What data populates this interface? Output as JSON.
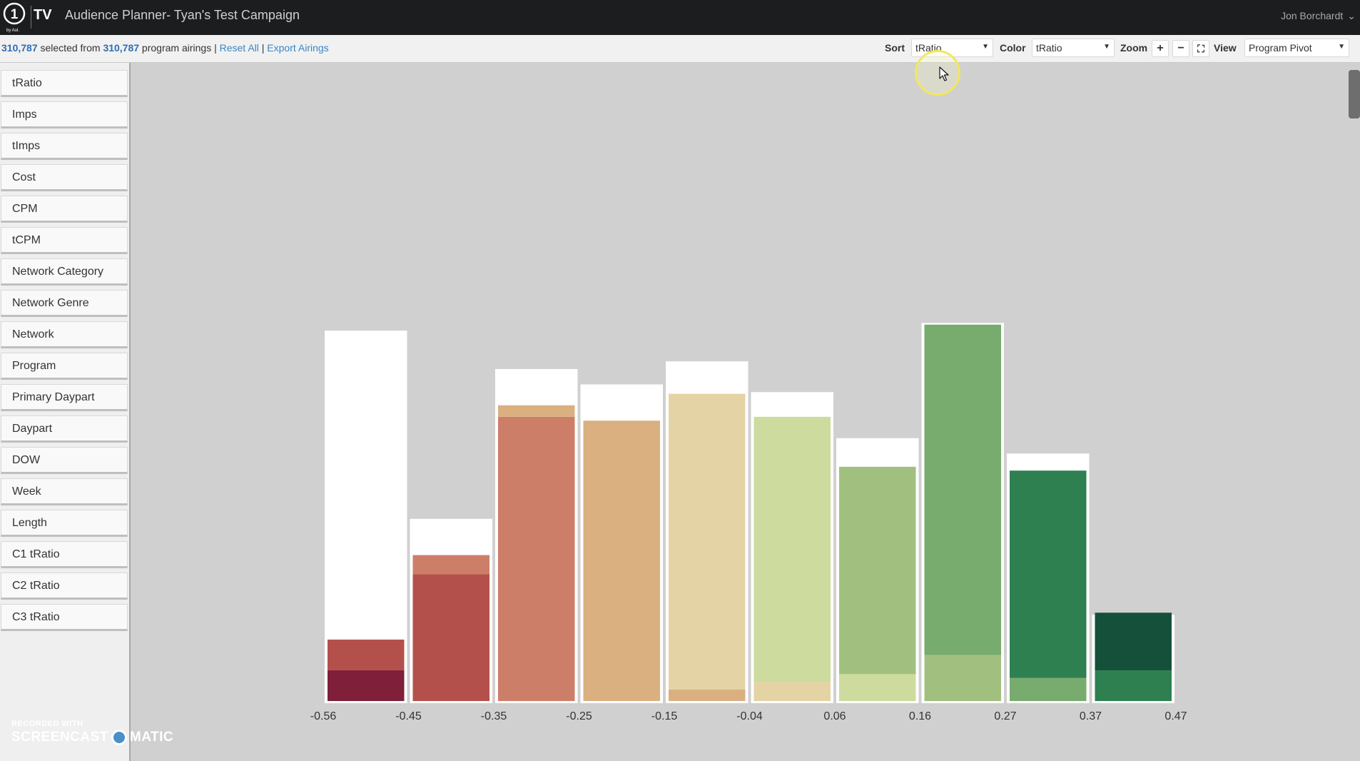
{
  "app": {
    "logo_tv": "TV",
    "title": "Audience Planner- Tyan's Test Campaign",
    "user": "Jon Borchardt"
  },
  "selection": {
    "selected": "310,787",
    "text_mid": " selected from ",
    "total": "310,787",
    "text_after": " program airings | ",
    "reset": "Reset All",
    "sep": " | ",
    "export": "Export Airings"
  },
  "controls": {
    "sort_label": "Sort",
    "sort_value": "tRatio",
    "color_label": "Color",
    "color_value": "tRatio",
    "zoom_label": "Zoom",
    "zoom_in": "+",
    "zoom_out": "−",
    "fit": "⛶",
    "view_label": "View",
    "view_value": "Program Pivot"
  },
  "sidebar": {
    "items": [
      "tRatio",
      "Imps",
      "tImps",
      "Cost",
      "CPM",
      "tCPM",
      "Network Category",
      "Network Genre",
      "Network",
      "Program",
      "Primary Daypart",
      "Daypart",
      "DOW",
      "Week",
      "Length",
      "C1 tRatio",
      "C2 tRatio",
      "C3 tRatio"
    ]
  },
  "chart_data": {
    "type": "bar",
    "x_ticks": [
      "-0.56",
      "-0.45",
      "-0.35",
      "-0.25",
      "-0.15",
      "-0.04",
      "0.06",
      "0.16",
      "0.27",
      "0.37",
      "0.47"
    ],
    "bins": [
      {
        "range": [
          "-0.56",
          "-0.45"
        ],
        "total": 97,
        "segments": [
          {
            "value": 8,
            "color": "#7f1f3a"
          },
          {
            "value": 8,
            "color": "#b4504b"
          }
        ]
      },
      {
        "range": [
          "-0.45",
          "-0.35"
        ],
        "total": 48,
        "segments": [
          {
            "value": 33,
            "color": "#b4504b"
          },
          {
            "value": 5,
            "color": "#cd7e68"
          }
        ]
      },
      {
        "range": [
          "-0.35",
          "-0.25"
        ],
        "total": 87,
        "segments": [
          {
            "value": 74,
            "color": "#cd7e68"
          },
          {
            "value": 3,
            "color": "#dab080"
          }
        ]
      },
      {
        "range": [
          "-0.25",
          "-0.15"
        ],
        "total": 83,
        "segments": [
          {
            "value": 73,
            "color": "#dab080"
          }
        ]
      },
      {
        "range": [
          "-0.15",
          "-0.04"
        ],
        "total": 89,
        "segments": [
          {
            "value": 3,
            "color": "#dab080"
          },
          {
            "value": 77,
            "color": "#e4d3a4"
          }
        ]
      },
      {
        "range": [
          "-0.04",
          "0.06"
        ],
        "total": 81,
        "segments": [
          {
            "value": 5,
            "color": "#e4d3a4"
          },
          {
            "value": 69,
            "color": "#cddb9e"
          }
        ]
      },
      {
        "range": [
          "0.06",
          "0.16"
        ],
        "total": 69,
        "segments": [
          {
            "value": 7,
            "color": "#cddb9e"
          },
          {
            "value": 54,
            "color": "#a1c080"
          }
        ]
      },
      {
        "range": [
          "0.16",
          "0.27"
        ],
        "total": 99,
        "segments": [
          {
            "value": 12,
            "color": "#a1c080"
          },
          {
            "value": 86,
            "color": "#78ab6e"
          }
        ]
      },
      {
        "range": [
          "0.27",
          "0.37"
        ],
        "total": 65,
        "segments": [
          {
            "value": 6,
            "color": "#78ab6e"
          },
          {
            "value": 54,
            "color": "#2e8051"
          }
        ]
      },
      {
        "range": [
          "0.37",
          "0.47"
        ],
        "total": 23,
        "segments": [
          {
            "value": 8,
            "color": "#2e8051"
          },
          {
            "value": 15,
            "color": "#14503a"
          }
        ]
      }
    ],
    "background_bar_color": "#ffffff",
    "title": "",
    "xlabel": "",
    "ylabel": ""
  },
  "watermark": {
    "line1": "RECORDED WITH",
    "line2a": "SCREENCAST",
    "line2b": "MATIC"
  }
}
